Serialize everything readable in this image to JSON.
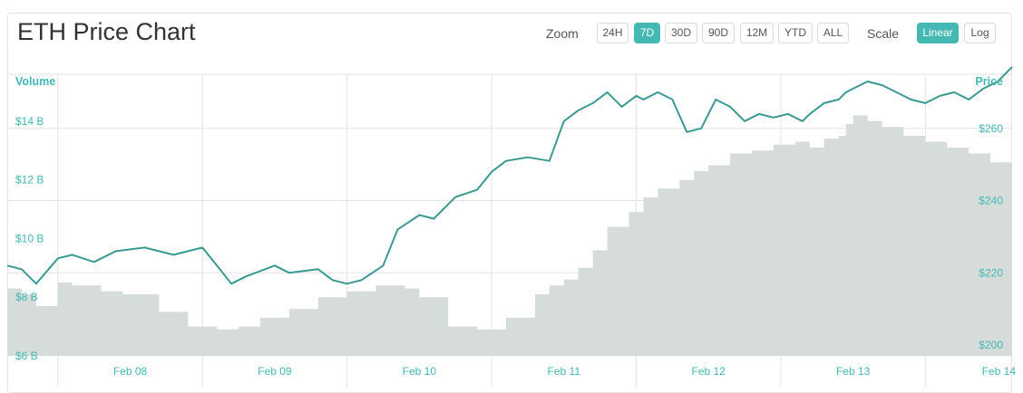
{
  "header": {
    "title": "ETH Price Chart",
    "zoom_label": "Zoom",
    "scale_label": "Scale",
    "zoom_options": [
      {
        "label": "24H",
        "active": false
      },
      {
        "label": "7D",
        "active": true
      },
      {
        "label": "30D",
        "active": false
      },
      {
        "label": "90D",
        "active": false
      },
      {
        "label": "12M",
        "active": false
      },
      {
        "label": "YTD",
        "active": false
      },
      {
        "label": "ALL",
        "active": false
      }
    ],
    "scale_options": [
      {
        "label": "Linear",
        "active": true
      },
      {
        "label": "Log",
        "active": false
      }
    ]
  },
  "colors": {
    "accent": "#44b8b3",
    "price_line": "#3a9a91",
    "volume_area": "#d5dcda",
    "grid": "#e3e3e3",
    "axis_text": "#44b8b3"
  },
  "chart_data": {
    "type": "line",
    "title": "ETH Price Chart",
    "x_ticks": [
      "Feb 08",
      "Feb 09",
      "Feb 10",
      "Feb 11",
      "Feb 12",
      "Feb 13",
      "Feb 14"
    ],
    "x_range": [
      7.15,
      14.1
    ],
    "left_axis": {
      "label": "Volume",
      "ticks": [
        "$6 B",
        "$8 B",
        "$10 B",
        "$12 B",
        "$14 B"
      ],
      "tick_values": [
        6,
        8,
        10,
        12,
        14
      ],
      "range": [
        6,
        15.6
      ]
    },
    "right_axis": {
      "label": "Price",
      "ticks": [
        "$200",
        "$220",
        "$240",
        "$260"
      ],
      "tick_values": [
        200,
        220,
        240,
        260
      ],
      "range": [
        197,
        275
      ]
    },
    "grid": true,
    "series": [
      {
        "name": "Price",
        "axis": "right",
        "x": [
          7.15,
          7.25,
          7.35,
          7.5,
          7.6,
          7.75,
          7.9,
          8.1,
          8.3,
          8.5,
          8.6,
          8.7,
          8.8,
          9.0,
          9.1,
          9.3,
          9.4,
          9.5,
          9.6,
          9.75,
          9.85,
          10.0,
          10.1,
          10.25,
          10.4,
          10.5,
          10.6,
          10.75,
          10.9,
          11.0,
          11.1,
          11.2,
          11.3,
          11.4,
          11.5,
          11.55,
          11.65,
          11.75,
          11.85,
          11.95,
          12.05,
          12.15,
          12.25,
          12.35,
          12.45,
          12.55,
          12.65,
          12.7,
          12.8,
          12.9,
          12.95,
          13.0,
          13.1,
          13.2,
          13.3,
          13.4,
          13.5,
          13.6,
          13.7,
          13.8,
          13.9,
          14.0,
          14.1
        ],
        "values": [
          222,
          221,
          217,
          224,
          225,
          223,
          226,
          227,
          225,
          227,
          222,
          217,
          219,
          222,
          220,
          221,
          218,
          217,
          218,
          222,
          232,
          236,
          235,
          241,
          243,
          248,
          251,
          252,
          251,
          262,
          265,
          267,
          270,
          266,
          269,
          268,
          270,
          268,
          259,
          260,
          268,
          266,
          262,
          264,
          263,
          264,
          262,
          264,
          267,
          268,
          270,
          271,
          273,
          272,
          270,
          268,
          267,
          269,
          270,
          268,
          271,
          273,
          277
        ]
      },
      {
        "name": "Volume",
        "axis": "left",
        "x": [
          7.15,
          7.25,
          7.35,
          7.5,
          7.6,
          7.8,
          7.95,
          8.2,
          8.4,
          8.6,
          8.75,
          8.9,
          9.1,
          9.3,
          9.5,
          9.7,
          9.9,
          10.0,
          10.2,
          10.4,
          10.6,
          10.8,
          10.9,
          11.0,
          11.1,
          11.2,
          11.3,
          11.45,
          11.55,
          11.65,
          11.8,
          11.9,
          12.0,
          12.15,
          12.3,
          12.45,
          12.6,
          12.7,
          12.8,
          12.9,
          12.95,
          13.0,
          13.1,
          13.2,
          13.35,
          13.5,
          13.65,
          13.8,
          13.95,
          14.1
        ],
        "values": [
          8.3,
          8.1,
          7.7,
          8.5,
          8.4,
          8.2,
          8.1,
          7.5,
          7.0,
          6.9,
          7.0,
          7.3,
          7.6,
          8.0,
          8.2,
          8.4,
          8.3,
          8.0,
          7.0,
          6.9,
          7.3,
          8.1,
          8.4,
          8.6,
          9.0,
          9.6,
          10.4,
          10.9,
          11.4,
          11.7,
          12.0,
          12.3,
          12.5,
          12.9,
          13.0,
          13.2,
          13.3,
          13.1,
          13.4,
          13.5,
          13.9,
          14.2,
          14.0,
          13.8,
          13.5,
          13.3,
          13.1,
          12.9,
          12.6,
          12.3
        ]
      }
    ]
  }
}
